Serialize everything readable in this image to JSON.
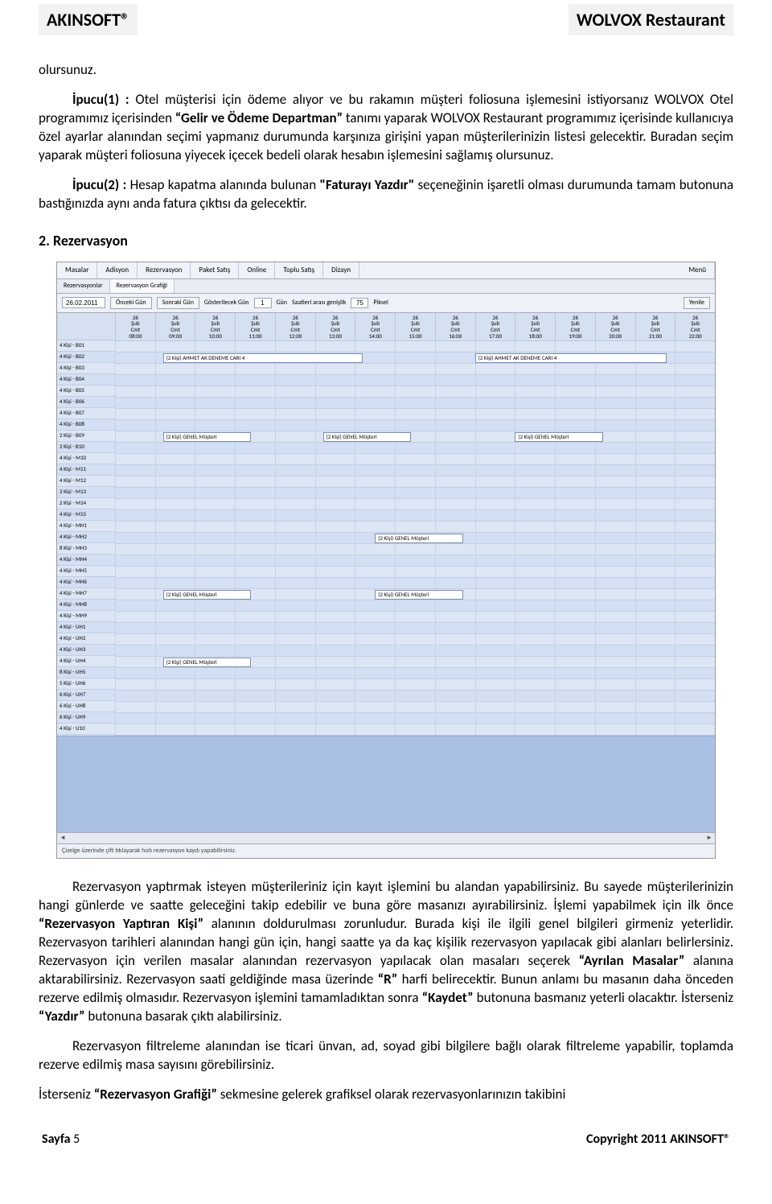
{
  "header": {
    "left": "AKINSOFT®",
    "right": "WOLVOX Restaurant"
  },
  "intro_tail": "olursunuz.",
  "ipucu1": {
    "prefix": "İpucu(1) :",
    "t1": " Otel müşterisi için ödeme alıyor ve bu rakamın müşteri foliosuna işlemesini istiyorsanız WOLVOX Otel programımız içerisinden ",
    "b1": "“Gelir ve Ödeme Departman”",
    "t2": " tanımı yaparak WOLVOX Restaurant programımız içerisinde kullanıcıya özel ayarlar alanından seçimi yapmanız durumunda karşınıza girişini yapan müşterilerinizin listesi gelecektir. Buradan seçim yaparak müşteri foliosuna yiyecek içecek bedeli olarak hesabın işlemesini sağlamış olursunuz."
  },
  "ipucu2": {
    "prefix": "İpucu(2) :",
    "t1": " Hesap kapatma alanında bulunan ",
    "b1": "\"Faturayı Yazdır\"",
    "t2": " seçeneğinin işaretli olması durumunda tamam butonuna bastığınızda aynı anda fatura çıktısı da gelecektir."
  },
  "section_title": "2. Rezervasyon",
  "screenshot": {
    "menu": [
      "Masalar",
      "Adisyon",
      "Rezervasyon",
      "Paket Satış",
      "Online",
      "Toplu Satış",
      "Dizayn"
    ],
    "menu_right": "Menü",
    "subtabs": [
      "Rezervasyonlar",
      "Rezervasyon Grafiği"
    ],
    "toolbar": {
      "date": "26.02.2011",
      "prev": "Önceki Gün",
      "next": "Sonraki Gün",
      "gun_lbl": "Gösterilecek Gün",
      "gun_val": "1",
      "gun_unit": "Gün",
      "pix_lbl": "Saatleri arası genişlik",
      "pix_val": "75",
      "pix_unit": "Piksel",
      "refresh": "Yenile"
    },
    "hours": [
      "08:00",
      "09:00",
      "10:00",
      "11:00",
      "12:00",
      "13:00",
      "14:00",
      "15:00",
      "16:00",
      "17:00",
      "18:00",
      "19:00",
      "20:00",
      "21:00",
      "22:00"
    ],
    "day_top": "26",
    "day_mid": "Şub",
    "day_bot": "Cmt",
    "rows": [
      "4 Kişi - B01",
      "4 Kişi - B02",
      "4 Kişi - B03",
      "4 Kişi - B04",
      "4 Kişi - B05",
      "4 Kişi - B06",
      "4 Kişi - B07",
      "4 Kişi - B08",
      "2 Kişi - B09",
      "2 Kişi - B10",
      "4 Kişi - M10",
      "4 Kişi - M11",
      "4 Kişi - M12",
      "2 Kişi - M13",
      "2 Kişi - M14",
      "4 Kişi - M15",
      "4 Kişi - MH1",
      "4 Kişi - MH2",
      "8 Kişi - MH3",
      "4 Kişi - MH4",
      "4 Kişi - MH5",
      "4 Kişi - MH6",
      "4 Kişi - MH7",
      "4 Kişi - MH8",
      "4 Kişi - MH9",
      "4 Kişi - UH1",
      "4 Kişi - UH2",
      "4 Kişi - UH3",
      "4 Kişi - UH4",
      "8 Kişi - UH5",
      "5 Kişi - UH6",
      "6 Kişi - UH7",
      "6 Kişi - UH8",
      "6 Kişi - UH9",
      "4 Kişi - U10"
    ],
    "bars": [
      {
        "row": 1,
        "start": 1.2,
        "width": 5.0,
        "label": "(2 Kişi) AHMET AK DENEME CARI 4"
      },
      {
        "row": 1,
        "start": 9.0,
        "width": 4.8,
        "label": "(2 Kişi) AHMET AK DENEME CARI 4"
      },
      {
        "row": 8,
        "start": 1.2,
        "width": 2.2,
        "label": "(2 Kişi) GENEL Müşteri"
      },
      {
        "row": 8,
        "start": 5.2,
        "width": 2.2,
        "label": "(2 Kişi) GENEL Müşteri"
      },
      {
        "row": 8,
        "start": 10.0,
        "width": 2.2,
        "label": "(2 Kişi) GENEL Müşteri"
      },
      {
        "row": 17,
        "start": 6.5,
        "width": 2.2,
        "label": "(2 Kişi) GENEL Müşteri"
      },
      {
        "row": 22,
        "start": 1.2,
        "width": 2.2,
        "label": "(2 Kişi) GENEL Müşteri"
      },
      {
        "row": 22,
        "start": 6.5,
        "width": 2.2,
        "label": "(2 Kişi) GENEL Müşteri"
      },
      {
        "row": 28,
        "start": 1.2,
        "width": 2.2,
        "label": "(2 Kişi) GENEL Müşteri"
      }
    ],
    "status": "Çizelge üzerinde çift tıklayarak hızlı rezervasyon kaydı yapabilirsiniz."
  },
  "after": {
    "p1": {
      "t1": "Rezervasyon yaptırmak isteyen müşterileriniz için kayıt işlemini bu alandan yapabilirsiniz. Bu sayede müşterilerinizin hangi günlerde ve saatte geleceğini takip edebilir ve buna göre masanızı ayırabilirsiniz. İşlemi yapabilmek için ilk önce ",
      "b1": "“Rezervasyon Yaptıran Kişi”",
      "t2": " alanının doldurulması zorunludur. Burada kişi ile ilgili genel bilgileri girmeniz yeterlidir. Rezervasyon tarihleri alanından hangi gün için, hangi saatte ya da kaç kişilik rezervasyon yapılacak gibi alanları belirlersiniz. Rezervasyon için verilen masalar alanından rezervasyon yapılacak olan masaları seçerek ",
      "b2": "“Ayrılan Masalar”",
      "t3": " alanına aktarabilirsiniz. Rezervasyon saati geldiğinde masa üzerinde ",
      "b3": "“R”",
      "t4": " harfi belirecektir. Bunun anlamı bu masanın daha önceden rezerve edilmiş olmasıdır. Rezervasyon işlemini tamamladıktan sonra ",
      "b4": "“Kaydet”",
      "t5": " butonuna basmanız yeterli olacaktır. İsterseniz ",
      "b5": "“Yazdır”",
      "t6": " butonuna basarak çıktı alabilirsiniz."
    },
    "p2": "Rezervasyon filtreleme alanından ise ticari ünvan, ad, soyad gibi bilgilere bağlı olarak filtreleme yapabilir, toplamda rezerve edilmiş masa sayısını görebilirsiniz.",
    "p3a": "İsterseniz ",
    "p3b": "“Rezervasyon Grafiği”",
    "p3c": " sekmesine gelerek grafiksel olarak rezervasyonlarınızın takibini"
  },
  "footer": {
    "page_label": "Sayfa",
    "page_num": "5",
    "copyright": "Copyright 2011 AKINSOFT®"
  }
}
